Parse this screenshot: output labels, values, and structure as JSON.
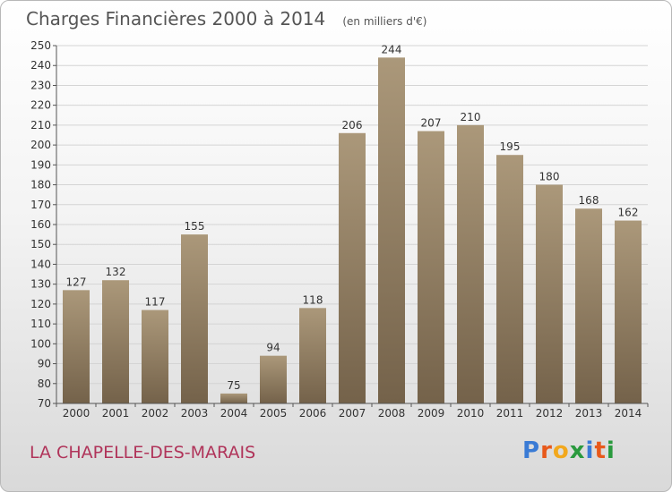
{
  "header": {
    "title": "Charges Financières 2000 à 2014",
    "subtitle": "(en milliers d'€)"
  },
  "footer": {
    "commune": "LA CHAPELLE-DES-MARAIS",
    "logo_letters": [
      "P",
      "r",
      "o",
      "x",
      "i",
      "t",
      "i"
    ]
  },
  "colors": {
    "bar_top": "#ab987a",
    "bar_bottom": "#74624a",
    "title": "#555555",
    "commune": "#b0345a"
  },
  "chart_data": {
    "type": "bar",
    "title": "Charges Financières 2000 à 2014",
    "subtitle": "(en milliers d'€)",
    "categories": [
      "2000",
      "2001",
      "2002",
      "2003",
      "2004",
      "2005",
      "2006",
      "2007",
      "2008",
      "2009",
      "2010",
      "2011",
      "2012",
      "2013",
      "2014"
    ],
    "values": [
      127,
      132,
      117,
      155,
      75,
      94,
      118,
      206,
      244,
      207,
      210,
      195,
      180,
      168,
      162
    ],
    "ylim": [
      70,
      250
    ],
    "yticks": [
      70,
      80,
      90,
      100,
      110,
      120,
      130,
      140,
      150,
      160,
      170,
      180,
      190,
      200,
      210,
      220,
      230,
      240,
      250
    ],
    "grid": true,
    "data_labels": true
  }
}
